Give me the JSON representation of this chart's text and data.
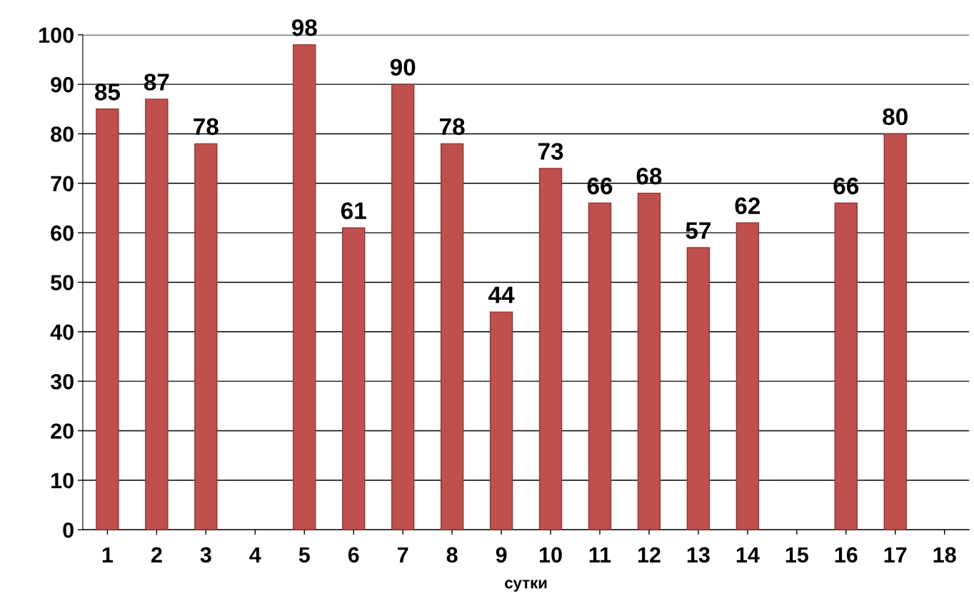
{
  "chart_data": {
    "type": "bar",
    "xlabel": "сутки",
    "categories": [
      "1",
      "2",
      "3",
      "4",
      "5",
      "6",
      "7",
      "8",
      "9",
      "10",
      "11",
      "12",
      "13",
      "14",
      "15",
      "16",
      "17",
      "18"
    ],
    "values": [
      85,
      87,
      78,
      null,
      98,
      61,
      90,
      78,
      44,
      73,
      66,
      68,
      57,
      62,
      null,
      66,
      80,
      null
    ],
    "color": "#c0504d",
    "ylim": [
      0,
      100
    ],
    "yticks": [
      0,
      10,
      20,
      30,
      40,
      50,
      60,
      70,
      80,
      90,
      100
    ],
    "grid": "y",
    "data_labels": true,
    "legend": false
  }
}
